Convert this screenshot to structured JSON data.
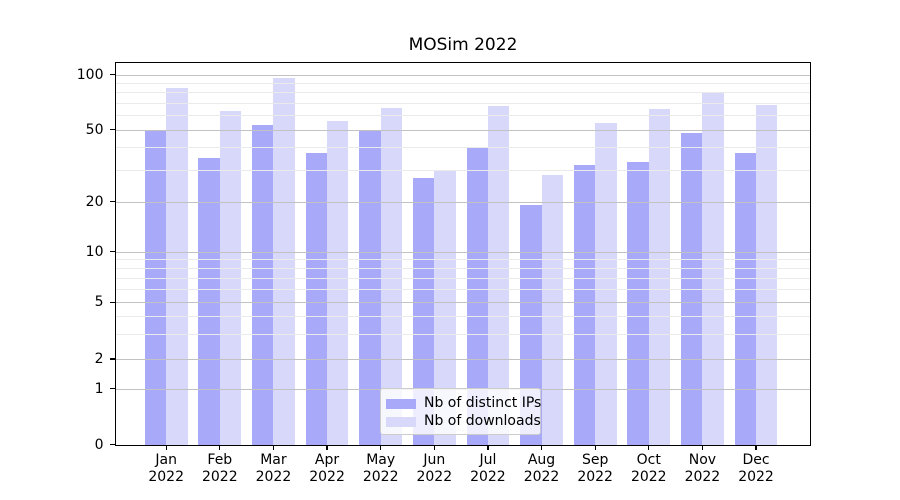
{
  "chart_data": {
    "type": "bar",
    "title": "MOSim 2022",
    "categories": [
      "Jan",
      "Feb",
      "Mar",
      "Apr",
      "May",
      "Jun",
      "Jul",
      "Aug",
      "Sep",
      "Oct",
      "Nov",
      "Dec"
    ],
    "x_year_label": "2022",
    "series": [
      {
        "name": "Nb of distinct IPs",
        "color": "#a9a9fa",
        "values": [
          49,
          35,
          53,
          37,
          50,
          27,
          40,
          19,
          32,
          33,
          48,
          37
        ]
      },
      {
        "name": "Nb of downloads",
        "color": "#d8d8fa",
        "values": [
          84,
          63,
          96,
          56,
          66,
          30,
          67,
          28,
          54,
          65,
          80,
          68
        ]
      }
    ],
    "yscale": "symlog",
    "ylim": [
      0,
      117
    ],
    "y_major_ticks": [
      0,
      1,
      2,
      5,
      10,
      20,
      50,
      100
    ],
    "y_minor_ticks": [
      3,
      4,
      6,
      7,
      8,
      9,
      30,
      40,
      60,
      70,
      80,
      90
    ],
    "grid": "on",
    "legend_position": "lower center"
  },
  "colors": {
    "bar_ips": "#a9a9fa",
    "bar_downloads": "#d8d8fa",
    "grid_major": "#c2c2c2",
    "grid_minor": "#eaeaea",
    "spine": "#000000",
    "legend_border": "#cccccc",
    "background": "#ffffff"
  }
}
